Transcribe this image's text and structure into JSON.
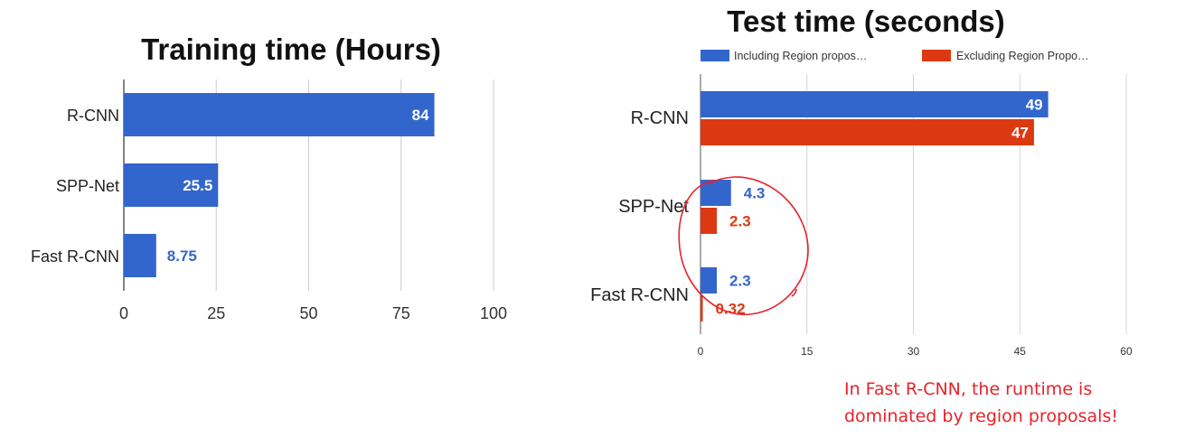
{
  "chart_data": [
    {
      "type": "bar",
      "orientation": "horizontal",
      "title": "Training time (Hours)",
      "categories": [
        "R-CNN",
        "SPP-Net",
        "Fast R-CNN"
      ],
      "values": [
        84,
        25.5,
        8.75
      ],
      "value_labels": [
        "84",
        "25.5",
        "8.75"
      ],
      "xlim": [
        0,
        100
      ],
      "xticks": [
        "0",
        "25",
        "50",
        "75",
        "100"
      ],
      "grid": true,
      "colors": {
        "bar": "#3366cc"
      }
    },
    {
      "type": "bar",
      "orientation": "horizontal",
      "title": "Test time (seconds)",
      "categories": [
        "R-CNN",
        "SPP-Net",
        "Fast R-CNN"
      ],
      "series": [
        {
          "name": "Including Region propos…",
          "values": [
            49,
            4.3,
            2.3
          ],
          "value_labels": [
            "49",
            "4.3",
            "2.3"
          ],
          "color": "#3366cc"
        },
        {
          "name": "Excluding Region Propo…",
          "values": [
            47,
            2.3,
            0.32
          ],
          "value_labels": [
            "47",
            "2.3",
            "0.32"
          ],
          "color": "#dc3912"
        }
      ],
      "xlim": [
        0,
        60
      ],
      "xticks": [
        "0",
        "15",
        "30",
        "45",
        "60"
      ],
      "grid": true,
      "legend": "top"
    }
  ],
  "annotation": {
    "lines": [
      "In Fast R-CNN, the runtime is",
      "dominated by region proposals!"
    ],
    "color": "#e8232a"
  }
}
